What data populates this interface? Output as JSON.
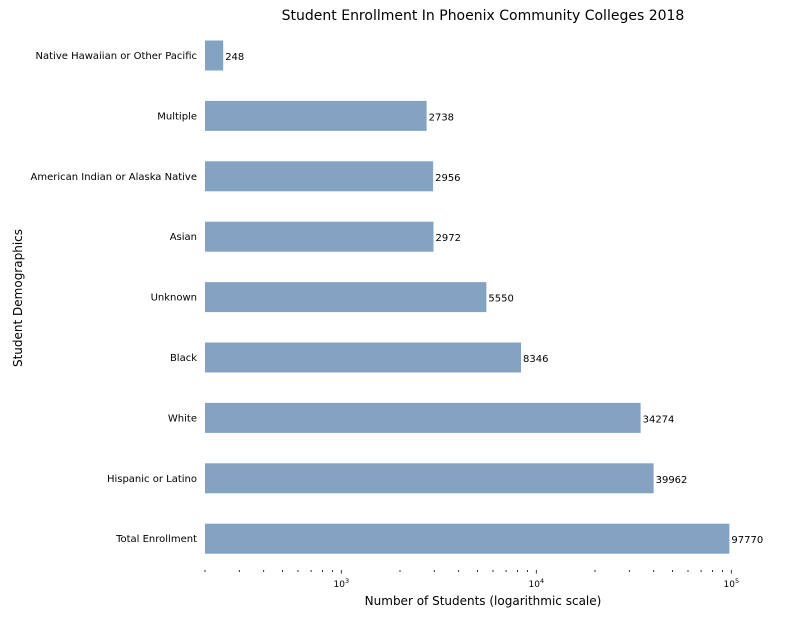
{
  "chart_data": {
    "type": "bar",
    "orientation": "horizontal",
    "title": "Student Enrollment In Phoenix Community Colleges 2018",
    "xlabel": "Number of Students (logarithmic scale)",
    "ylabel": "Student Demographics",
    "xscale": "log",
    "xlim": [
      200,
      100000
    ],
    "xticks": [
      {
        "value": 1000,
        "base": "10",
        "exp": "3"
      },
      {
        "value": 10000,
        "base": "10",
        "exp": "4"
      },
      {
        "value": 100000,
        "base": "10",
        "exp": "5"
      }
    ],
    "grid": false,
    "bar_color": "#84a3c2",
    "categories": [
      "Native Hawaiian or Other Pacific",
      "Multiple",
      "American Indian or Alaska Native",
      "Asian",
      "Unknown",
      "Black",
      "White",
      "Hispanic or Latino",
      "Total Enrollment"
    ],
    "values": [
      248,
      2738,
      2956,
      2972,
      5550,
      8346,
      34274,
      39962,
      97770
    ],
    "value_labels": [
      "248",
      "2738",
      "2956",
      "2972",
      "5550",
      "8346",
      "34274",
      "39962",
      "97770"
    ]
  }
}
